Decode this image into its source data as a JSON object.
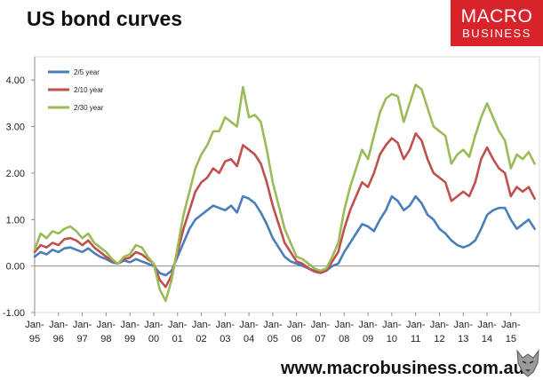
{
  "header": {
    "title": "US bond curves"
  },
  "brand": {
    "line1": "MACRO",
    "line2": "BUSINESS",
    "color": "#d8232a"
  },
  "footer": {
    "url": "www.macrobusiness.com.au"
  },
  "chart_data": {
    "type": "line",
    "title": "US bond curves",
    "xlabel": "",
    "ylabel": "",
    "xlim": [
      1995.0,
      2016.2
    ],
    "ylim": [
      -1.0,
      4.5
    ],
    "y_ticks": [
      -1.0,
      0.0,
      1.0,
      2.0,
      3.0,
      4.0
    ],
    "y_tick_labels": [
      "-1.00",
      "0.00",
      "1.00",
      "2.00",
      "3.00",
      "4.00"
    ],
    "x_ticks": [
      1995,
      1996,
      1997,
      1998,
      1999,
      2000,
      2001,
      2002,
      2003,
      2004,
      2005,
      2006,
      2007,
      2008,
      2009,
      2010,
      2011,
      2012,
      2013,
      2014,
      2015
    ],
    "x_tick_labels": [
      "Jan-95",
      "Jan-96",
      "Jan-97",
      "Jan-98",
      "Jan-99",
      "Jan-00",
      "Jan-01",
      "Jan-02",
      "Jan-03",
      "Jan-04",
      "Jan-05",
      "Jan-06",
      "Jan-07",
      "Jan-08",
      "Jan-09",
      "Jan-10",
      "Jan-11",
      "Jan-12",
      "Jan-13",
      "Jan-14",
      "Jan-15"
    ],
    "grid": false,
    "legend_position": "top-left",
    "series": [
      {
        "name": "2/5 year",
        "color": "#4a7ebb",
        "points": [
          [
            1995.0,
            0.2
          ],
          [
            1995.25,
            0.3
          ],
          [
            1995.5,
            0.25
          ],
          [
            1995.75,
            0.35
          ],
          [
            1996.0,
            0.3
          ],
          [
            1996.25,
            0.38
          ],
          [
            1996.5,
            0.4
          ],
          [
            1996.75,
            0.35
          ],
          [
            1997.0,
            0.3
          ],
          [
            1997.25,
            0.38
          ],
          [
            1997.5,
            0.28
          ],
          [
            1997.75,
            0.2
          ],
          [
            1998.0,
            0.15
          ],
          [
            1998.25,
            0.08
          ],
          [
            1998.5,
            0.05
          ],
          [
            1998.75,
            0.12
          ],
          [
            1999.0,
            0.08
          ],
          [
            1999.25,
            0.15
          ],
          [
            1999.5,
            0.1
          ],
          [
            1999.75,
            0.05
          ],
          [
            2000.0,
            0.0
          ],
          [
            2000.25,
            -0.15
          ],
          [
            2000.5,
            -0.2
          ],
          [
            2000.75,
            -0.1
          ],
          [
            2001.0,
            0.2
          ],
          [
            2001.25,
            0.5
          ],
          [
            2001.5,
            0.8
          ],
          [
            2001.75,
            1.0
          ],
          [
            2002.0,
            1.1
          ],
          [
            2002.25,
            1.2
          ],
          [
            2002.5,
            1.3
          ],
          [
            2002.75,
            1.25
          ],
          [
            2003.0,
            1.2
          ],
          [
            2003.25,
            1.3
          ],
          [
            2003.5,
            1.15
          ],
          [
            2003.75,
            1.5
          ],
          [
            2004.0,
            1.45
          ],
          [
            2004.25,
            1.35
          ],
          [
            2004.5,
            1.15
          ],
          [
            2004.75,
            0.9
          ],
          [
            2005.0,
            0.6
          ],
          [
            2005.25,
            0.4
          ],
          [
            2005.5,
            0.2
          ],
          [
            2005.75,
            0.1
          ],
          [
            2006.0,
            0.05
          ],
          [
            2006.25,
            0.0
          ],
          [
            2006.5,
            -0.05
          ],
          [
            2006.75,
            -0.1
          ],
          [
            2007.0,
            -0.12
          ],
          [
            2007.25,
            -0.1
          ],
          [
            2007.5,
            0.0
          ],
          [
            2007.75,
            0.05
          ],
          [
            2008.0,
            0.3
          ],
          [
            2008.25,
            0.5
          ],
          [
            2008.5,
            0.7
          ],
          [
            2008.75,
            0.9
          ],
          [
            2009.0,
            0.85
          ],
          [
            2009.25,
            0.75
          ],
          [
            2009.5,
            1.0
          ],
          [
            2009.75,
            1.2
          ],
          [
            2010.0,
            1.5
          ],
          [
            2010.25,
            1.4
          ],
          [
            2010.5,
            1.2
          ],
          [
            2010.75,
            1.3
          ],
          [
            2011.0,
            1.5
          ],
          [
            2011.25,
            1.35
          ],
          [
            2011.5,
            1.1
          ],
          [
            2011.75,
            1.0
          ],
          [
            2012.0,
            0.8
          ],
          [
            2012.25,
            0.7
          ],
          [
            2012.5,
            0.55
          ],
          [
            2012.75,
            0.45
          ],
          [
            2013.0,
            0.4
          ],
          [
            2013.25,
            0.45
          ],
          [
            2013.5,
            0.55
          ],
          [
            2013.75,
            0.8
          ],
          [
            2014.0,
            1.1
          ],
          [
            2014.25,
            1.2
          ],
          [
            2014.5,
            1.25
          ],
          [
            2014.75,
            1.25
          ],
          [
            2015.0,
            1.0
          ],
          [
            2015.25,
            0.8
          ],
          [
            2015.5,
            0.9
          ],
          [
            2015.75,
            1.0
          ],
          [
            2016.0,
            0.8
          ]
        ]
      },
      {
        "name": "2/10 year",
        "color": "#c0504d",
        "points": [
          [
            1995.0,
            0.3
          ],
          [
            1995.25,
            0.45
          ],
          [
            1995.5,
            0.4
          ],
          [
            1995.75,
            0.5
          ],
          [
            1996.0,
            0.45
          ],
          [
            1996.25,
            0.58
          ],
          [
            1996.5,
            0.6
          ],
          [
            1996.75,
            0.55
          ],
          [
            1997.0,
            0.45
          ],
          [
            1997.25,
            0.55
          ],
          [
            1997.5,
            0.4
          ],
          [
            1997.75,
            0.3
          ],
          [
            1998.0,
            0.2
          ],
          [
            1998.25,
            0.12
          ],
          [
            1998.5,
            0.05
          ],
          [
            1998.75,
            0.15
          ],
          [
            1999.0,
            0.18
          ],
          [
            1999.25,
            0.3
          ],
          [
            1999.5,
            0.25
          ],
          [
            1999.75,
            0.15
          ],
          [
            2000.0,
            0.05
          ],
          [
            2000.25,
            -0.3
          ],
          [
            2000.5,
            -0.45
          ],
          [
            2000.75,
            -0.2
          ],
          [
            2001.0,
            0.3
          ],
          [
            2001.25,
            0.8
          ],
          [
            2001.5,
            1.2
          ],
          [
            2001.75,
            1.6
          ],
          [
            2002.0,
            1.8
          ],
          [
            2002.25,
            1.9
          ],
          [
            2002.5,
            2.1
          ],
          [
            2002.75,
            2.0
          ],
          [
            2003.0,
            2.25
          ],
          [
            2003.25,
            2.3
          ],
          [
            2003.5,
            2.15
          ],
          [
            2003.75,
            2.6
          ],
          [
            2004.0,
            2.5
          ],
          [
            2004.25,
            2.4
          ],
          [
            2004.5,
            2.2
          ],
          [
            2004.75,
            1.8
          ],
          [
            2005.0,
            1.3
          ],
          [
            2005.25,
            0.9
          ],
          [
            2005.5,
            0.5
          ],
          [
            2005.75,
            0.3
          ],
          [
            2006.0,
            0.1
          ],
          [
            2006.25,
            0.05
          ],
          [
            2006.5,
            -0.05
          ],
          [
            2006.75,
            -0.12
          ],
          [
            2007.0,
            -0.15
          ],
          [
            2007.25,
            -0.1
          ],
          [
            2007.5,
            0.1
          ],
          [
            2007.75,
            0.3
          ],
          [
            2008.0,
            0.8
          ],
          [
            2008.25,
            1.2
          ],
          [
            2008.5,
            1.5
          ],
          [
            2008.75,
            1.8
          ],
          [
            2009.0,
            1.7
          ],
          [
            2009.25,
            2.0
          ],
          [
            2009.5,
            2.4
          ],
          [
            2009.75,
            2.6
          ],
          [
            2010.0,
            2.75
          ],
          [
            2010.25,
            2.65
          ],
          [
            2010.5,
            2.3
          ],
          [
            2010.75,
            2.5
          ],
          [
            2011.0,
            2.85
          ],
          [
            2011.25,
            2.7
          ],
          [
            2011.5,
            2.3
          ],
          [
            2011.75,
            2.0
          ],
          [
            2012.0,
            1.9
          ],
          [
            2012.25,
            1.8
          ],
          [
            2012.5,
            1.4
          ],
          [
            2012.75,
            1.5
          ],
          [
            2013.0,
            1.6
          ],
          [
            2013.25,
            1.5
          ],
          [
            2013.5,
            1.8
          ],
          [
            2013.75,
            2.3
          ],
          [
            2014.0,
            2.55
          ],
          [
            2014.25,
            2.3
          ],
          [
            2014.5,
            2.1
          ],
          [
            2014.75,
            2.0
          ],
          [
            2015.0,
            1.5
          ],
          [
            2015.25,
            1.7
          ],
          [
            2015.5,
            1.6
          ],
          [
            2015.75,
            1.7
          ],
          [
            2016.0,
            1.45
          ]
        ]
      },
      {
        "name": "2/30 year",
        "color": "#9bbb59",
        "points": [
          [
            1995.0,
            0.35
          ],
          [
            1995.25,
            0.7
          ],
          [
            1995.5,
            0.6
          ],
          [
            1995.75,
            0.75
          ],
          [
            1996.0,
            0.7
          ],
          [
            1996.25,
            0.8
          ],
          [
            1996.5,
            0.85
          ],
          [
            1996.75,
            0.75
          ],
          [
            1997.0,
            0.6
          ],
          [
            1997.25,
            0.7
          ],
          [
            1997.5,
            0.5
          ],
          [
            1997.75,
            0.4
          ],
          [
            1998.0,
            0.3
          ],
          [
            1998.25,
            0.15
          ],
          [
            1998.5,
            0.05
          ],
          [
            1998.75,
            0.2
          ],
          [
            1999.0,
            0.25
          ],
          [
            1999.25,
            0.45
          ],
          [
            1999.5,
            0.4
          ],
          [
            1999.75,
            0.2
          ],
          [
            2000.0,
            0.05
          ],
          [
            2000.25,
            -0.5
          ],
          [
            2000.5,
            -0.75
          ],
          [
            2000.75,
            -0.3
          ],
          [
            2001.0,
            0.4
          ],
          [
            2001.25,
            1.1
          ],
          [
            2001.5,
            1.6
          ],
          [
            2001.75,
            2.1
          ],
          [
            2002.0,
            2.4
          ],
          [
            2002.25,
            2.6
          ],
          [
            2002.5,
            2.9
          ],
          [
            2002.75,
            2.9
          ],
          [
            2003.0,
            3.2
          ],
          [
            2003.25,
            3.1
          ],
          [
            2003.5,
            3.0
          ],
          [
            2003.75,
            3.85
          ],
          [
            2004.0,
            3.2
          ],
          [
            2004.25,
            3.25
          ],
          [
            2004.5,
            3.1
          ],
          [
            2004.75,
            2.5
          ],
          [
            2005.0,
            1.8
          ],
          [
            2005.25,
            1.3
          ],
          [
            2005.5,
            0.8
          ],
          [
            2005.75,
            0.5
          ],
          [
            2006.0,
            0.2
          ],
          [
            2006.25,
            0.15
          ],
          [
            2006.5,
            0.05
          ],
          [
            2006.75,
            -0.05
          ],
          [
            2007.0,
            -0.1
          ],
          [
            2007.25,
            -0.05
          ],
          [
            2007.5,
            0.2
          ],
          [
            2007.75,
            0.5
          ],
          [
            2008.0,
            1.2
          ],
          [
            2008.25,
            1.7
          ],
          [
            2008.5,
            2.1
          ],
          [
            2008.75,
            2.5
          ],
          [
            2009.0,
            2.3
          ],
          [
            2009.25,
            2.8
          ],
          [
            2009.5,
            3.3
          ],
          [
            2009.75,
            3.6
          ],
          [
            2010.0,
            3.7
          ],
          [
            2010.25,
            3.65
          ],
          [
            2010.5,
            3.1
          ],
          [
            2010.75,
            3.5
          ],
          [
            2011.0,
            3.9
          ],
          [
            2011.25,
            3.8
          ],
          [
            2011.5,
            3.4
          ],
          [
            2011.75,
            3.0
          ],
          [
            2012.0,
            2.9
          ],
          [
            2012.25,
            2.8
          ],
          [
            2012.5,
            2.2
          ],
          [
            2012.75,
            2.4
          ],
          [
            2013.0,
            2.5
          ],
          [
            2013.25,
            2.35
          ],
          [
            2013.5,
            2.8
          ],
          [
            2013.75,
            3.2
          ],
          [
            2014.0,
            3.5
          ],
          [
            2014.25,
            3.2
          ],
          [
            2014.5,
            2.9
          ],
          [
            2014.75,
            2.7
          ],
          [
            2015.0,
            2.1
          ],
          [
            2015.25,
            2.4
          ],
          [
            2015.5,
            2.3
          ],
          [
            2015.75,
            2.45
          ],
          [
            2016.0,
            2.2
          ]
        ]
      }
    ]
  }
}
